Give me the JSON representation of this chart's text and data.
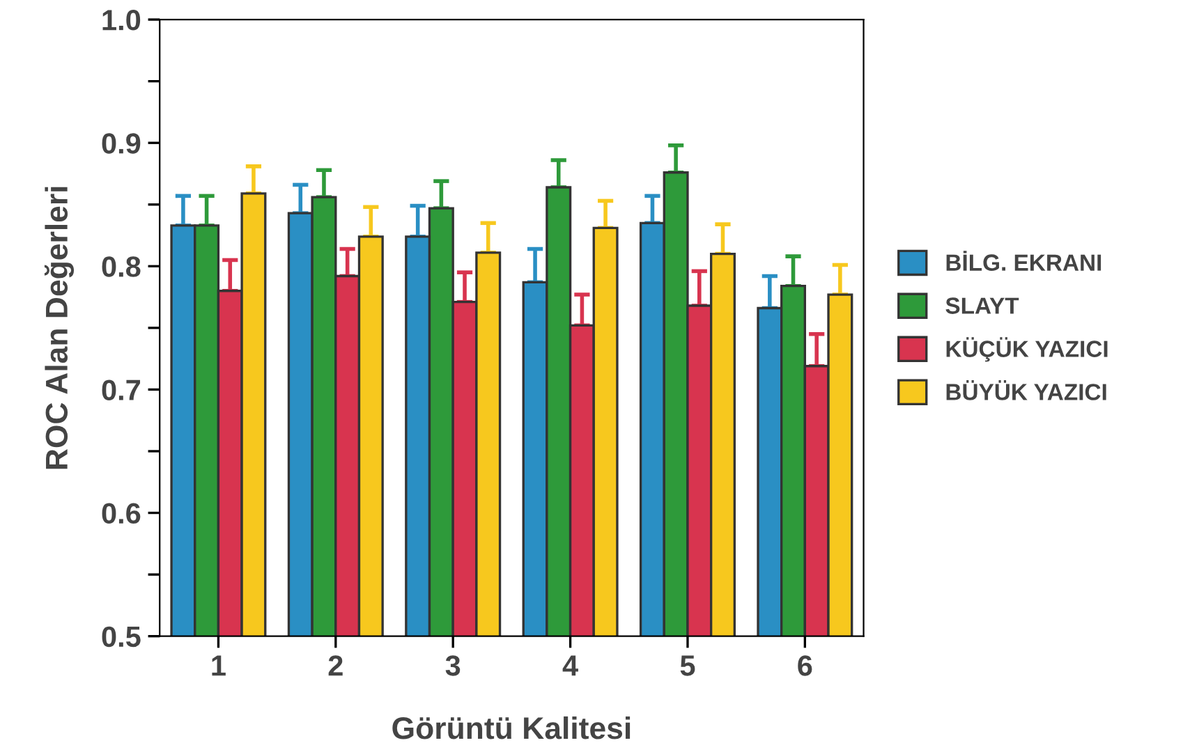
{
  "chart_data": {
    "type": "bar",
    "xlabel": "Görüntü Kalitesi",
    "ylabel": "ROC Alan Değerleri",
    "categories": [
      "1",
      "2",
      "3",
      "4",
      "5",
      "6"
    ],
    "series": [
      {
        "name": "BİLG. EKRANI",
        "color": "#2a8fc4",
        "values": [
          0.833,
          0.843,
          0.824,
          0.787,
          0.835,
          0.766
        ],
        "errors": [
          [
            0.833,
            0.857
          ],
          [
            0.843,
            0.866
          ],
          [
            0.824,
            0.849
          ],
          [
            0.787,
            0.814
          ],
          [
            0.835,
            0.857
          ],
          [
            0.766,
            0.792
          ]
        ]
      },
      {
        "name": "SLAYT",
        "color": "#2e9a3a",
        "values": [
          0.833,
          0.856,
          0.847,
          0.864,
          0.876,
          0.784
        ],
        "errors": [
          [
            0.833,
            0.857
          ],
          [
            0.856,
            0.878
          ],
          [
            0.847,
            0.869
          ],
          [
            0.864,
            0.886
          ],
          [
            0.876,
            0.898
          ],
          [
            0.784,
            0.808
          ]
        ]
      },
      {
        "name": "KÜÇÜK YAZICI",
        "color": "#d8344f",
        "values": [
          0.78,
          0.792,
          0.771,
          0.752,
          0.768,
          0.719
        ],
        "errors": [
          [
            0.78,
            0.805
          ],
          [
            0.792,
            0.814
          ],
          [
            0.771,
            0.795
          ],
          [
            0.752,
            0.777
          ],
          [
            0.768,
            0.796
          ],
          [
            0.719,
            0.745
          ]
        ]
      },
      {
        "name": "BÜYÜK YAZICI",
        "color": "#f7c81e",
        "values": [
          0.859,
          0.824,
          0.811,
          0.831,
          0.81,
          0.777
        ],
        "errors": [
          [
            0.859,
            0.881
          ],
          [
            0.824,
            0.848
          ],
          [
            0.811,
            0.835
          ],
          [
            0.831,
            0.853
          ],
          [
            0.81,
            0.834
          ],
          [
            0.777,
            0.801
          ]
        ]
      }
    ],
    "ylim": [
      0.5,
      1.0
    ],
    "yticks": [
      0.5,
      {
        "value": 0.55,
        "label": null
      },
      0.6,
      {
        "value": 0.65,
        "label": null
      },
      0.7,
      {
        "value": 0.75,
        "label": null
      },
      0.8,
      {
        "value": 0.85,
        "label": null
      },
      0.9,
      {
        "value": 0.95,
        "label": null
      },
      {
        "value": 1.0,
        "label": "1.0"
      }
    ],
    "grid": false,
    "legend": "right"
  }
}
